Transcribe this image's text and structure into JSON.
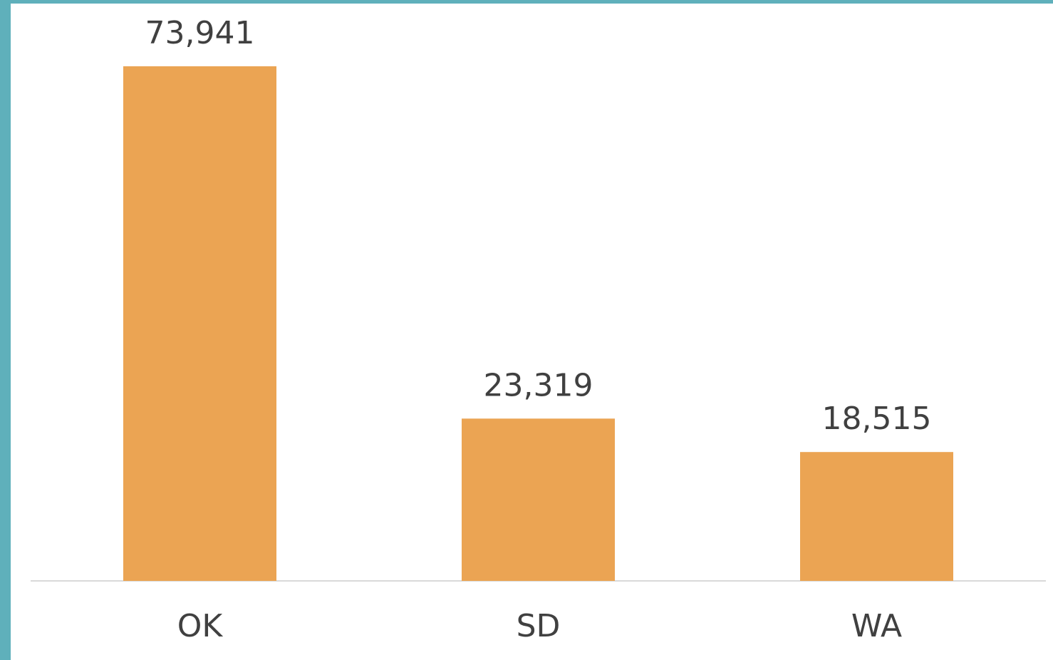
{
  "chart_data": {
    "type": "bar",
    "categories": [
      "OK",
      "SD",
      "WA"
    ],
    "values": [
      73941,
      23319,
      18515
    ],
    "value_labels": [
      "73,941",
      "23,319",
      "18,515"
    ],
    "color": "#eba453"
  }
}
